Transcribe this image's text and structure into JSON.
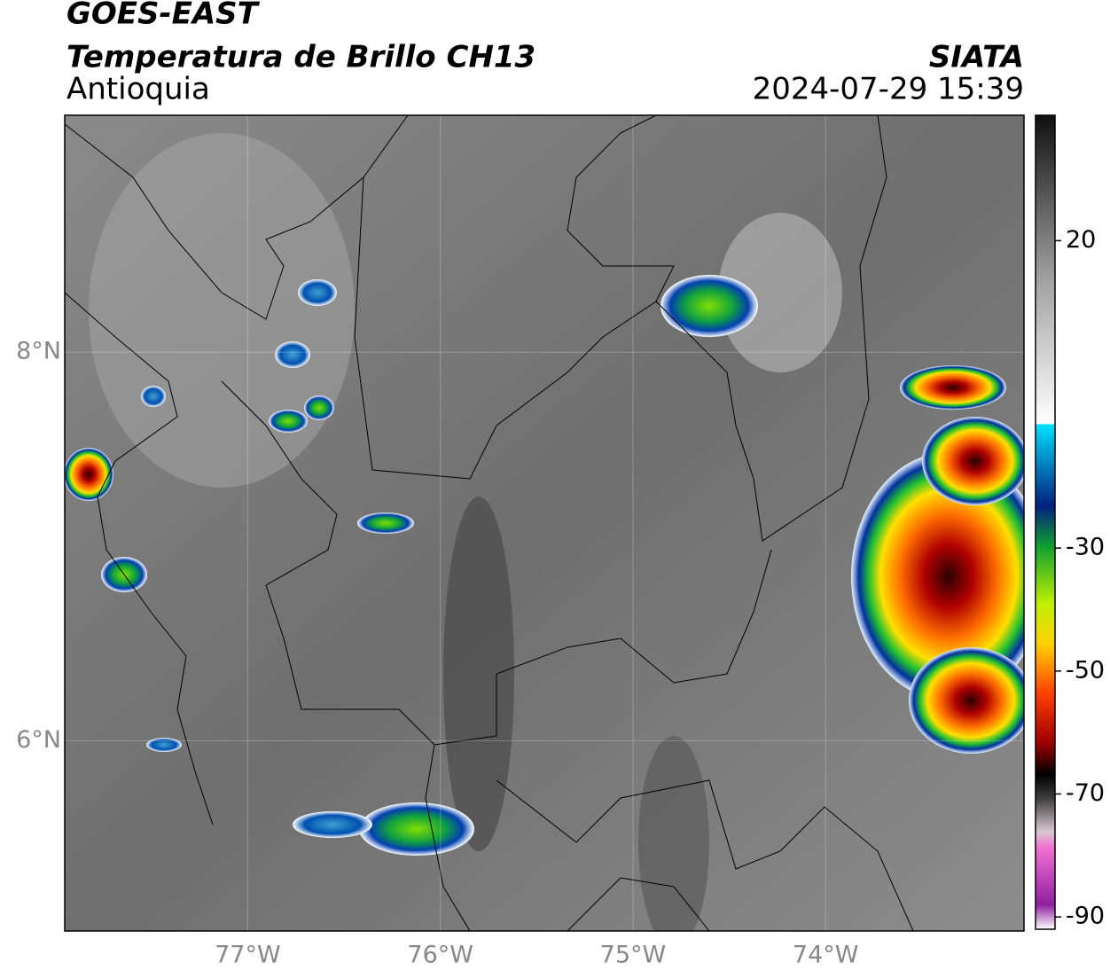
{
  "header": {
    "title": "GOES-EAST",
    "subtitle": "Temperatura de Brillo CH13",
    "region": "Antioquia",
    "source": "SIATA",
    "datetime": "2024-07-29 15:39"
  },
  "map": {
    "xlim": [
      -77.95,
      -72.97
    ],
    "ylim": [
      5.02,
      9.22
    ],
    "grid": true,
    "xticks": [
      {
        "value": -77,
        "label": "77°W"
      },
      {
        "value": -76,
        "label": "76°W"
      },
      {
        "value": -75,
        "label": "75°W"
      },
      {
        "value": -74,
        "label": "74°W"
      }
    ],
    "yticks": [
      {
        "value": 8,
        "label": "8°N"
      },
      {
        "value": 6,
        "label": "6°N"
      }
    ]
  },
  "colorbar": {
    "lim": [
      -92,
      40.4
    ],
    "ticks": [
      20,
      -30,
      -50,
      -70,
      -90
    ]
  }
}
